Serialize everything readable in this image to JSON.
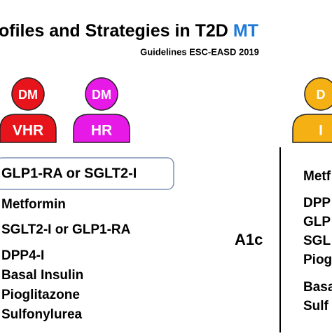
{
  "header": {
    "title": "ofiles and Strategies in T2D ",
    "title_highlight": "MT",
    "subtitle": "Guidelines ESC-EASD 2019"
  },
  "profiles": [
    {
      "top": "DM",
      "bottom": "VHR",
      "color": "#e8141b"
    },
    {
      "top": "DM",
      "bottom": "HR",
      "color": "#e619e6"
    },
    {
      "top": "D",
      "bottom": "I",
      "color": "#f5b014"
    }
  ],
  "left_list": {
    "highlighted": "GLP1-RA or SGLT2-I",
    "items": [
      "Metformin",
      "SGLT2-I or GLP1-RA",
      "DPP4-I",
      "Basal Insulin",
      "Pioglitazone",
      "Sulfonylurea"
    ]
  },
  "center_label": "A1c",
  "right_list": {
    "items": [
      "Metf",
      "DPP",
      "GLP",
      "SGL",
      "Piog",
      "Basa",
      "Sulf"
    ]
  }
}
